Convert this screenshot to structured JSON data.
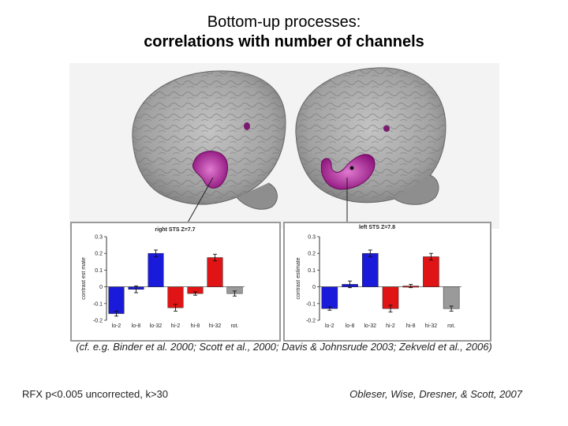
{
  "title": {
    "line1": "Bottom-up processes:",
    "line2": "correlations with number of channels"
  },
  "footer": {
    "citation": "(cf. e.g. Binder et al. 2000; Scott et al., 2000; Davis & Johnsrude 2003; Zekveld et al., 2006)",
    "stats": "RFX p<0.005 uncorrected, k>30",
    "authors": "Obleser, Wise, Dresner, & Scott, 2007"
  },
  "colors": {
    "blue": "#1a1adb",
    "red": "#e01414",
    "gray": "#9a9a9a",
    "activation": "#b01a9a",
    "brain": "#a9a9a9"
  },
  "chart_data": [
    {
      "type": "bar",
      "title": "right STS Z=7.7",
      "ylabel": "contrast est mate",
      "ylim": [
        -0.2,
        0.3
      ],
      "yticks": [
        "0.3",
        "0.2",
        "0.1",
        "0",
        "-0.1",
        "-0.2"
      ],
      "categories": [
        "lo-2",
        "lo-8",
        "lo-32",
        "hi-2",
        "hi-8",
        "hi-32",
        "rot."
      ],
      "values": [
        -0.16,
        -0.015,
        0.2,
        -0.125,
        -0.04,
        0.175,
        -0.04
      ],
      "errors": [
        0.015,
        0.02,
        0.02,
        0.02,
        0.01,
        0.02,
        0.015
      ],
      "bar_colors": [
        "blue",
        "blue",
        "blue",
        "red",
        "red",
        "red",
        "gray"
      ]
    },
    {
      "type": "bar",
      "title": "left STS Z=7.8",
      "ylabel": "contrast estimate",
      "ylim": [
        -0.2,
        0.3
      ],
      "yticks": [
        "0.3",
        "0.2",
        "0.1",
        "0",
        "-0.1",
        "-0.2"
      ],
      "categories": [
        "lo-2",
        "lo-8",
        "lo-32",
        "hi-2",
        "hi-8",
        "hi-32",
        "rot."
      ],
      "values": [
        -0.13,
        0.015,
        0.2,
        -0.13,
        0.005,
        0.18,
        -0.13
      ],
      "errors": [
        0.01,
        0.02,
        0.02,
        0.02,
        0.01,
        0.02,
        0.015
      ],
      "bar_colors": [
        "blue",
        "blue",
        "blue",
        "red",
        "red",
        "red",
        "gray"
      ]
    }
  ]
}
